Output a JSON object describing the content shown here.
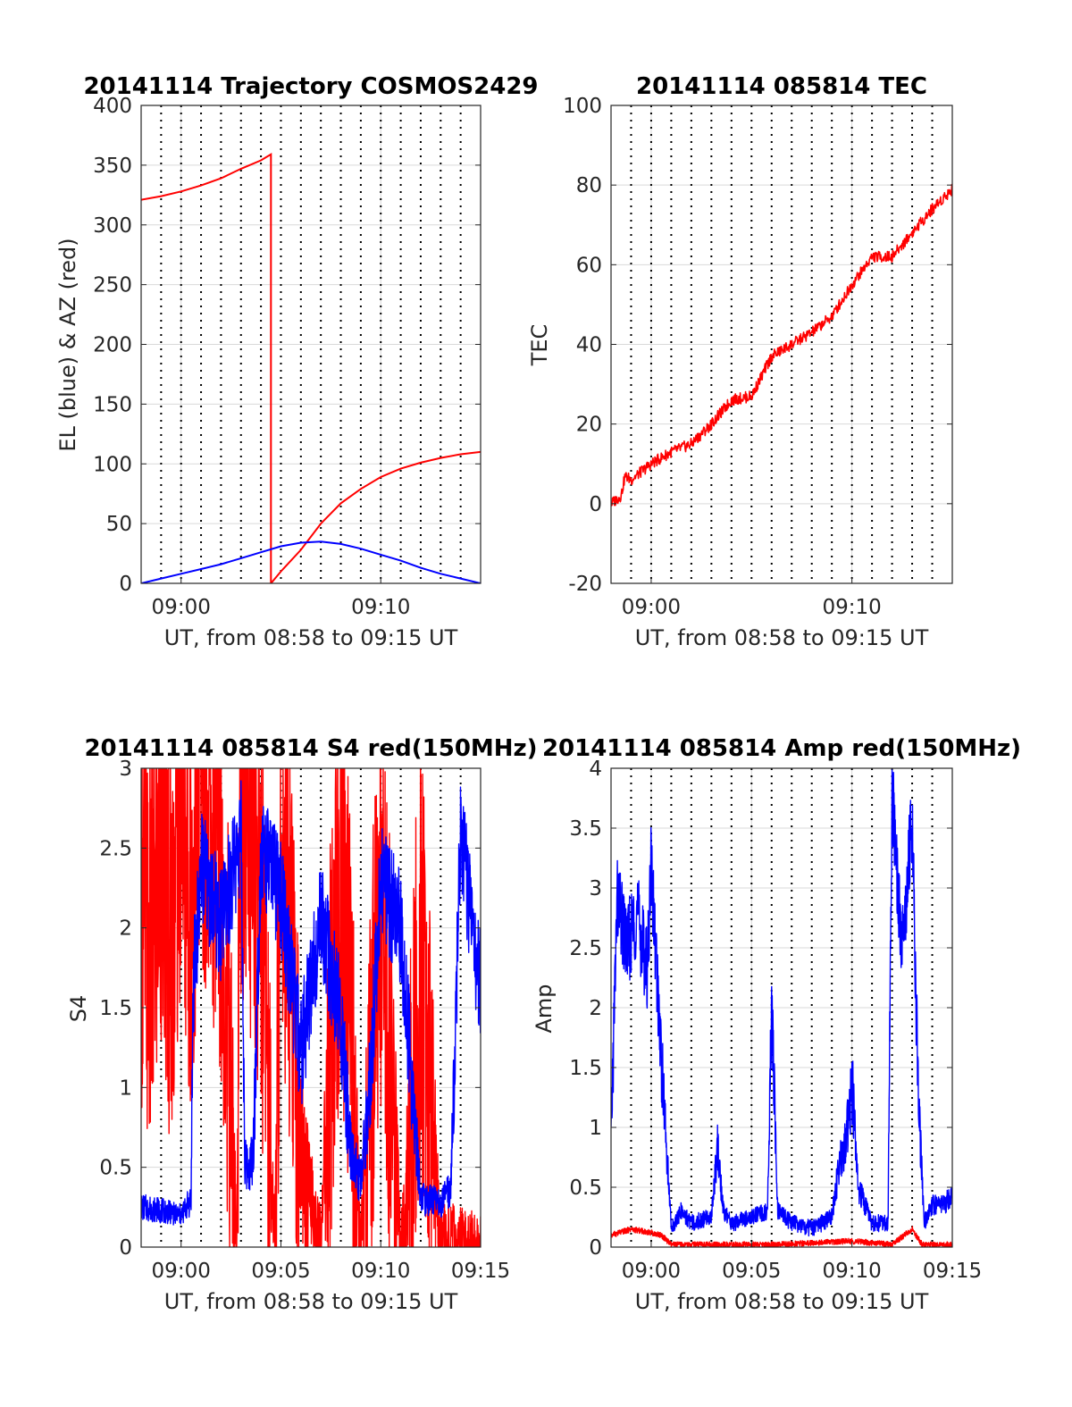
{
  "chart_data": [
    {
      "id": "traj",
      "type": "line",
      "title": "20141114 Trajectory COSMOS2429",
      "xlabel": "UT, from 08:58 to 09:15 UT",
      "ylabel": "EL (blue) & AZ (red)",
      "xlim": [
        "08:58",
        "09:15"
      ],
      "ylim": [
        0,
        400
      ],
      "xticks": [
        {
          "value": "09:00",
          "label": "09:00"
        },
        {
          "value": "09:10",
          "label": "09:10"
        }
      ],
      "yticks": [
        0,
        50,
        100,
        150,
        200,
        250,
        300,
        350,
        400
      ],
      "minute_markers": true,
      "grid": true,
      "series": [
        {
          "color": "#ff0000",
          "x": [
            "08:58",
            "08:59",
            "09:00",
            "09:01",
            "09:02",
            "09:03",
            "09:04",
            "09:04.5",
            "09:04.5",
            "09:05",
            "09:06",
            "09:07",
            "09:08",
            "09:09",
            "09:10",
            "09:11",
            "09:12",
            "09:13",
            "09:14",
            "09:15"
          ],
          "values": [
            321,
            324,
            328,
            333,
            339,
            347,
            354,
            359,
            0,
            10,
            28,
            50,
            67,
            79,
            89,
            96,
            101,
            105,
            108,
            110
          ]
        },
        {
          "color": "#0000ff",
          "x": [
            "08:58",
            "08:59",
            "09:00",
            "09:01",
            "09:02",
            "09:03",
            "09:04",
            "09:05",
            "09:06",
            "09:07",
            "09:08",
            "09:09",
            "09:10",
            "09:11",
            "09:12",
            "09:13",
            "09:14",
            "09:15"
          ],
          "values": [
            0,
            4,
            8,
            12,
            16,
            21,
            26,
            31,
            34,
            35,
            33,
            29,
            24,
            19,
            13,
            8,
            4,
            0
          ]
        }
      ]
    },
    {
      "id": "tec",
      "type": "line",
      "title": "20141114 085814 TEC",
      "xlabel": "UT, from 08:58 to 09:15 UT",
      "ylabel": "TEC",
      "xlim": [
        "08:58",
        "09:15"
      ],
      "ylim": [
        -20,
        100
      ],
      "xticks": [
        {
          "value": "09:00",
          "label": "09:00"
        },
        {
          "value": "09:10",
          "label": "09:10"
        }
      ],
      "yticks": [
        -20,
        0,
        20,
        40,
        60,
        80,
        100
      ],
      "minute_markers": true,
      "grid": true,
      "series": [
        {
          "color": "#ff0000",
          "x": [
            "08:58",
            "08:58.5",
            "08:58.7",
            "08:59",
            "09:00",
            "09:01",
            "09:02",
            "09:03",
            "09:04",
            "09:05",
            "09:06",
            "09:07",
            "09:08",
            "09:09",
            "09:10",
            "09:11",
            "09:12",
            "09:13",
            "09:14",
            "09:15"
          ],
          "values": [
            0,
            2,
            7,
            6,
            10,
            13,
            15,
            20,
            26,
            27,
            37,
            40,
            43,
            47,
            55,
            62,
            62,
            68,
            74,
            79
          ]
        }
      ]
    },
    {
      "id": "s4",
      "type": "line",
      "title": "20141114 085814 S4 red(150MHz)",
      "xlabel": "UT, from 08:58 to 09:15 UT",
      "ylabel": "S4",
      "xlim": [
        "08:58",
        "09:15"
      ],
      "ylim": [
        0,
        3
      ],
      "xticks": [
        {
          "value": "09:00",
          "label": "09:00"
        },
        {
          "value": "09:05",
          "label": "09:05"
        },
        {
          "value": "09:10",
          "label": "09:10"
        },
        {
          "value": "09:15",
          "label": "09:15"
        }
      ],
      "yticks": [
        0,
        0.5,
        1,
        1.5,
        2,
        2.5,
        3
      ],
      "minute_markers": true,
      "grid": true,
      "series": [
        {
          "color": "#ff0000",
          "x": [
            "08:58",
            "08:58.5",
            "08:59",
            "08:59.5",
            "09:00",
            "09:00.5",
            "09:01",
            "09:02",
            "09:02.8",
            "09:03",
            "09:04",
            "09:04.7",
            "09:05",
            "09:06",
            "09:07",
            "09:08",
            "09:09",
            "09:10",
            "09:11",
            "09:12",
            "09:13",
            "09:14"
          ],
          "values": [
            2.2,
            1.7,
            2.6,
            1.9,
            2.9,
            2.1,
            3.0,
            2.4,
            0,
            2.9,
            2.2,
            0,
            2.8,
            0.6,
            0,
            2.5,
            0,
            2.2,
            0,
            1.8,
            0,
            0
          ]
        },
        {
          "color": "#0000ff",
          "x": [
            "08:58",
            "08:59",
            "09:00",
            "09:00.5",
            "09:00.6",
            "09:01",
            "09:02",
            "09:03",
            "09:03.2",
            "09:03.6",
            "09:04",
            "09:05",
            "09:06",
            "09:07",
            "09:08",
            "09:08.5",
            "09:09",
            "09:09.5",
            "09:10",
            "09:11",
            "09:12",
            "09:13",
            "09:13.5",
            "09:14",
            "09:15"
          ],
          "values": [
            0.25,
            0.23,
            0.2,
            0.3,
            1.6,
            2.4,
            2.0,
            2.6,
            0.5,
            0.55,
            2.5,
            2.2,
            1.2,
            2.1,
            1.4,
            0.6,
            0.4,
            1.1,
            2.3,
            2.0,
            0.3,
            0.28,
            0.35,
            2.6,
            1.6
          ]
        }
      ]
    },
    {
      "id": "amp",
      "type": "line",
      "title": "20141114 085814 Amp red(150MHz)",
      "xlabel": "UT, from 08:58 to 09:15 UT",
      "ylabel": "Amp",
      "xlim": [
        "08:58",
        "09:15"
      ],
      "ylim": [
        0,
        4
      ],
      "xticks": [
        {
          "value": "09:00",
          "label": "09:00"
        },
        {
          "value": "09:05",
          "label": "09:05"
        },
        {
          "value": "09:10",
          "label": "09:10"
        },
        {
          "value": "09:15",
          "label": "09:15"
        }
      ],
      "yticks": [
        0,
        0.5,
        1,
        1.5,
        2,
        2.5,
        3,
        3.5,
        4
      ],
      "minute_markers": true,
      "grid": true,
      "series": [
        {
          "color": "#ff0000",
          "x": [
            "08:58",
            "08:59",
            "09:00",
            "09:00.5",
            "09:01",
            "09:06",
            "09:10",
            "09:12",
            "09:13",
            "09:13.5",
            "09:15"
          ],
          "values": [
            0.1,
            0.15,
            0.12,
            0.1,
            0.02,
            0.02,
            0.05,
            0.02,
            0.15,
            0.02,
            0.02
          ]
        },
        {
          "color": "#0000ff",
          "x": [
            "08:58",
            "08:58.3",
            "08:58.8",
            "08:59.3",
            "08:59.8",
            "09:00",
            "09:00.5",
            "09:01",
            "09:01.5",
            "09:02",
            "09:03",
            "09:03.3",
            "09:03.6",
            "09:04",
            "09:05",
            "09:05.8",
            "09:06",
            "09:06.3",
            "09:07",
            "09:08",
            "09:09",
            "09:09.3",
            "09:09.8",
            "09:10",
            "09:10.3",
            "09:11",
            "09:11.8",
            "09:12",
            "09:12.5",
            "09:13",
            "09:13.3",
            "09:13.6",
            "09:14",
            "09:15"
          ],
          "values": [
            0.9,
            2.9,
            2.5,
            2.8,
            2.3,
            3.2,
            1.6,
            0.15,
            0.3,
            0.2,
            0.25,
            0.85,
            0.3,
            0.2,
            0.25,
            0.3,
            2.0,
            0.3,
            0.2,
            0.15,
            0.25,
            0.6,
            1.0,
            1.4,
            0.5,
            0.2,
            0.2,
            3.8,
            2.5,
            3.6,
            1.3,
            0.2,
            0.35,
            0.4
          ]
        }
      ]
    }
  ]
}
